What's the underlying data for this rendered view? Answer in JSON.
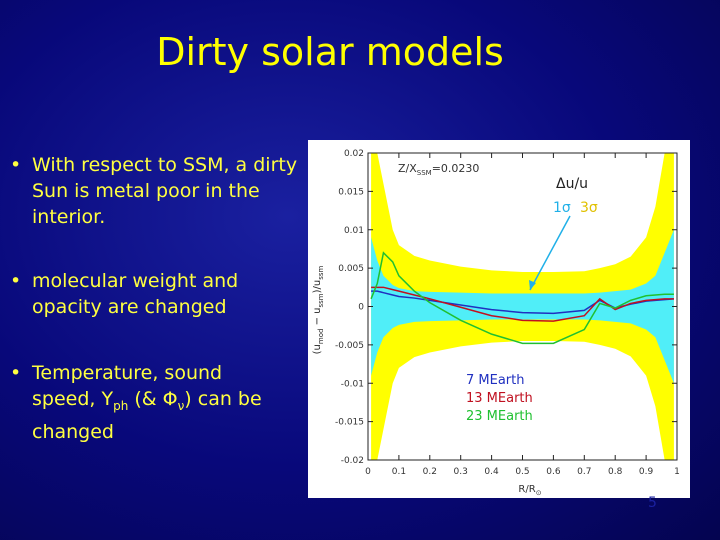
{
  "slide": {
    "title": "Dirty solar models",
    "bullets": [
      {
        "parts": [
          "With respect to SSM, a dirty Sun is metal poor in the interior."
        ]
      },
      {
        "parts": [
          "molecular weight and opacity are changed"
        ]
      },
      {
        "parts": [
          "Temperature, sound speed, Y",
          "ph",
          " (& Φ",
          "ν",
          ") can be changed"
        ]
      }
    ],
    "page_number": "5"
  },
  "chart_data": {
    "type": "line",
    "x_label": {
      "parts": [
        "R/R",
        "⊙"
      ]
    },
    "y_label": {
      "parts": [
        "(u",
        "mod",
        " − u",
        "ssm",
        ")/u",
        "ssm"
      ]
    },
    "annotations": {
      "composition": {
        "parts": [
          "Z/X",
          "SSM",
          "=0.0230"
        ]
      },
      "quantity": "Δu/u"
    },
    "xlim": [
      0,
      1
    ],
    "xticks": [
      0,
      0.1,
      0.2,
      0.3,
      0.4,
      0.5,
      0.6,
      0.7,
      0.8,
      0.9,
      1
    ],
    "ylim": [
      -0.02,
      0.02
    ],
    "yticks": [
      -0.02,
      -0.015,
      -0.01,
      -0.005,
      0,
      0.005,
      0.01,
      0.015,
      0.02
    ],
    "x": [
      0.01,
      0.03,
      0.05,
      0.08,
      0.1,
      0.15,
      0.2,
      0.3,
      0.4,
      0.5,
      0.6,
      0.7,
      0.75,
      0.8,
      0.85,
      0.9,
      0.93,
      0.96,
      0.99
    ],
    "bands": [
      {
        "name": "3σ",
        "color": "#ffff00",
        "label_color": "#e0c000",
        "upper": [
          0.02,
          0.02,
          0.016,
          0.01,
          0.008,
          0.0066,
          0.006,
          0.0052,
          0.0047,
          0.0045,
          0.0045,
          0.0046,
          0.005,
          0.0055,
          0.0065,
          0.009,
          0.013,
          0.02,
          0.02
        ],
        "lower": [
          -0.02,
          -0.02,
          -0.016,
          -0.01,
          -0.008,
          -0.0066,
          -0.006,
          -0.0052,
          -0.0047,
          -0.0045,
          -0.0045,
          -0.0046,
          -0.005,
          -0.0055,
          -0.0065,
          -0.009,
          -0.013,
          -0.02,
          -0.02
        ]
      },
      {
        "name": "1σ",
        "color": "#50eef8",
        "label_color": "#20b0e8",
        "upper": [
          0.009,
          0.006,
          0.004,
          0.0028,
          0.0024,
          0.002,
          0.0019,
          0.0018,
          0.0017,
          0.0017,
          0.0017,
          0.0017,
          0.0018,
          0.002,
          0.0022,
          0.003,
          0.004,
          0.007,
          0.01
        ],
        "lower": [
          -0.009,
          -0.006,
          -0.004,
          -0.0028,
          -0.0024,
          -0.002,
          -0.0019,
          -0.0018,
          -0.0017,
          -0.0017,
          -0.0017,
          -0.0017,
          -0.0018,
          -0.002,
          -0.0022,
          -0.003,
          -0.004,
          -0.007,
          -0.01
        ]
      }
    ],
    "series": [
      {
        "name": "7 MEarth",
        "color": "#2030c0",
        "values": [
          0.002,
          0.002,
          0.0018,
          0.0015,
          0.0013,
          0.0011,
          0.0008,
          0.0002,
          -0.0004,
          -0.0008,
          -0.0009,
          -0.0005,
          0.0008,
          -0.0002,
          0.0003,
          0.0007,
          0.0008,
          0.0009,
          0.001
        ]
      },
      {
        "name": "13 MEarth",
        "color": "#c01020",
        "values": [
          0.0025,
          0.0025,
          0.0025,
          0.0022,
          0.002,
          0.0015,
          0.001,
          -0.0001,
          -0.0012,
          -0.0018,
          -0.0019,
          -0.0012,
          0.001,
          -0.0004,
          0.0004,
          0.0008,
          0.0009,
          0.001,
          0.001
        ]
      },
      {
        "name": "23 MEarth",
        "color": "#20c030",
        "values": [
          0.001,
          0.003,
          0.007,
          0.0058,
          0.004,
          0.002,
          0.0005,
          -0.0018,
          -0.0036,
          -0.0048,
          -0.0048,
          -0.003,
          0.0004,
          -0.0002,
          0.0008,
          0.0014,
          0.0015,
          0.0016,
          0.0016
        ]
      }
    ]
  }
}
